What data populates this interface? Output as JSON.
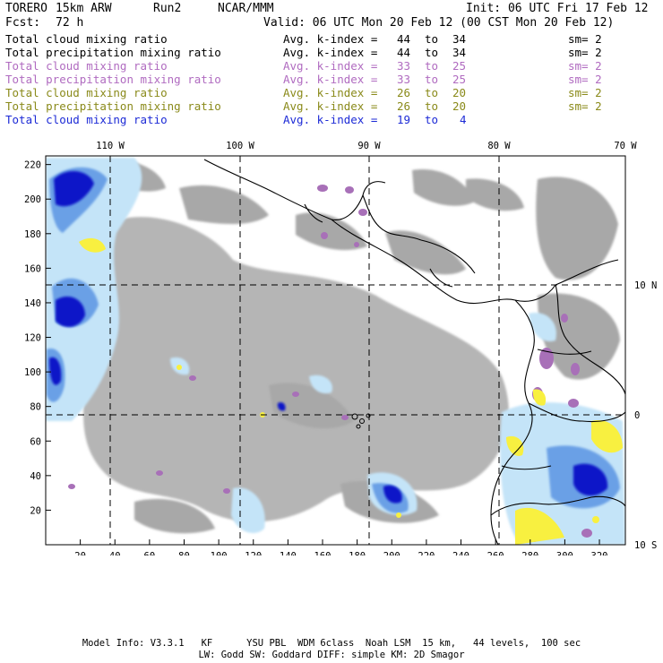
{
  "header": {
    "model": "TORERO",
    "resolution": "15km ARW",
    "run": "Run2",
    "org": "NCAR/MMM",
    "init": "Init: 06 UTC Fri 17 Feb 12",
    "fcst_label": "Fcst:",
    "fcst_value": "72 h",
    "valid": "Valid: 06 UTC Mon 20 Feb 12 (00 CST Mon 20 Feb 12)"
  },
  "legend": [
    {
      "field": "Total cloud mixing ratio",
      "index_label": "Avg. k-index =",
      "from": "44",
      "to_word": "to",
      "to": "34",
      "sm": "sm= 2",
      "color": "#000000"
    },
    {
      "field": "Total precipitation mixing ratio",
      "index_label": "Avg. k-index =",
      "from": "44",
      "to_word": "to",
      "to": "34",
      "sm": "sm= 2",
      "color": "#000000"
    },
    {
      "field": "Total cloud mixing ratio",
      "index_label": "Avg. k-index =",
      "from": "33",
      "to_word": "to",
      "to": "25",
      "sm": "sm= 2",
      "color": "#b06bc0"
    },
    {
      "field": "Total precipitation mixing ratio",
      "index_label": "Avg. k-index =",
      "from": "33",
      "to_word": "to",
      "to": "25",
      "sm": "sm= 2",
      "color": "#b06bc0"
    },
    {
      "field": "Total cloud mixing ratio",
      "index_label": "Avg. k-index =",
      "from": "26",
      "to_word": "to",
      "to": "20",
      "sm": "sm= 2",
      "color": "#8a8a1a"
    },
    {
      "field": "Total precipitation mixing ratio",
      "index_label": "Avg. k-index =",
      "from": "26",
      "to_word": "to",
      "to": "20",
      "sm": "sm= 2",
      "color": "#8a8a1a"
    },
    {
      "field": "Total cloud mixing ratio",
      "index_label": "Avg. k-index =",
      "from": "19",
      "to_word": "to",
      "to": "4",
      "sm": "",
      "color": "#1c2ad6"
    }
  ],
  "map": {
    "x_ticks": [
      "20",
      "40",
      "60",
      "80",
      "100",
      "120",
      "140",
      "160",
      "180",
      "200",
      "220",
      "240",
      "260",
      "280",
      "300",
      "320"
    ],
    "y_ticks": [
      "20",
      "40",
      "60",
      "80",
      "100",
      "120",
      "140",
      "160",
      "180",
      "200",
      "220"
    ],
    "lon_labels": [
      "110 W",
      "100 W",
      "90 W",
      "80 W",
      "70 W"
    ],
    "lat_labels": [
      "10 N",
      "0",
      "10 S"
    ],
    "colors": {
      "gray": "#a8a8a8",
      "light_blue": "#c4e4f8",
      "mid_blue": "#6aa0e6",
      "dark_blue": "#0a14c8",
      "purple": "#a870b8",
      "yellow": "#f8f040"
    }
  },
  "footer": {
    "line1": "Model Info: V3.3.1   KF      YSU PBL  WDM 6class  Noah LSM  15 km,   44 levels,  100 sec",
    "line2": "LW: Godd SW: Goddard DIFF: simple KM: 2D Smagor"
  }
}
